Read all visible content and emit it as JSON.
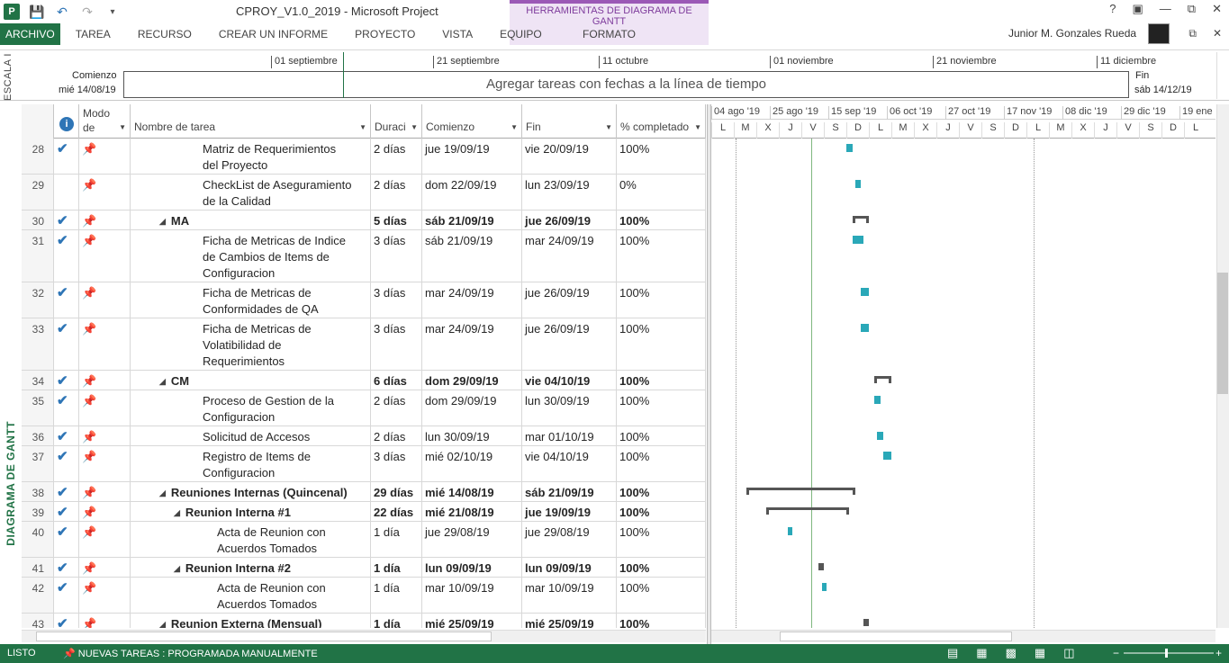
{
  "window": {
    "title": "CPROY_V1.0_2019 - Microsoft Project",
    "tools_group": "HERRAMIENTAS DE DIAGRAMA DE GANTT",
    "help": "?",
    "user": "Junior M. Gonzales Rueda"
  },
  "ribbon": {
    "tabs": [
      "ARCHIVO",
      "TAREA",
      "RECURSO",
      "CREAR UN INFORME",
      "PROYECTO",
      "VISTA",
      "EQUIPO"
    ],
    "context_tab": "FORMATO"
  },
  "timeline": {
    "side_label": "ESCALA I",
    "start_label": "Comienzo",
    "start_date": "mié 14/08/19",
    "end_label": "Fin",
    "end_date": "sáb 14/12/19",
    "placeholder": "Agregar tareas con fechas a la línea de tiempo",
    "ticks": [
      "01 septiembre",
      "21 septiembre",
      "11 octubre",
      "01 noviembre",
      "21 noviembre",
      "11 diciembre"
    ]
  },
  "view_label": "DIAGRAMA DE GANTT",
  "table": {
    "headers": {
      "mode": "Modo de",
      "name": "Nombre de tarea",
      "duration": "Duraci",
      "start": "Comienzo",
      "finish": "Fin",
      "pct": "% completado"
    },
    "rows": [
      {
        "id": "28",
        "check": true,
        "name_lines": [
          "Matriz de Requerimientos",
          "del Proyecto"
        ],
        "level": 2,
        "summary": false,
        "dur": "2 días",
        "start": "jue 19/09/19",
        "end": "vie 20/09/19",
        "pct": "100%"
      },
      {
        "id": "29",
        "check": false,
        "name_lines": [
          "CheckList de Aseguramiento",
          "de la Calidad"
        ],
        "level": 2,
        "summary": false,
        "dur": "2 días",
        "start": "dom 22/09/19",
        "end": "lun 23/09/19",
        "pct": "0%"
      },
      {
        "id": "30",
        "check": true,
        "name_lines": [
          "MA"
        ],
        "level": 1,
        "summary": true,
        "dur": "5 días",
        "start": "sáb 21/09/19",
        "end": "jue 26/09/19",
        "pct": "100%"
      },
      {
        "id": "31",
        "check": true,
        "name_lines": [
          "Ficha de Metricas de Indice",
          "de Cambios de Items de",
          "Configuracion"
        ],
        "level": 2,
        "summary": false,
        "dur": "3 días",
        "start": "sáb 21/09/19",
        "end": "mar 24/09/19",
        "pct": "100%"
      },
      {
        "id": "32",
        "check": true,
        "name_lines": [
          "Ficha de Metricas de",
          "Conformidades de QA"
        ],
        "level": 2,
        "summary": false,
        "dur": "3 días",
        "start": "mar 24/09/19",
        "end": "jue 26/09/19",
        "pct": "100%"
      },
      {
        "id": "33",
        "check": true,
        "name_lines": [
          "Ficha de Metricas de",
          "Volatibilidad de",
          "Requerimientos"
        ],
        "level": 2,
        "summary": false,
        "dur": "3 días",
        "start": "mar 24/09/19",
        "end": "jue 26/09/19",
        "pct": "100%"
      },
      {
        "id": "34",
        "check": true,
        "name_lines": [
          "CM"
        ],
        "level": 1,
        "summary": true,
        "dur": "6 días",
        "start": "dom 29/09/19",
        "end": "vie 04/10/19",
        "pct": "100%"
      },
      {
        "id": "35",
        "check": true,
        "name_lines": [
          "Proceso de Gestion de la",
          "Configuracion"
        ],
        "level": 2,
        "summary": false,
        "dur": "2 días",
        "start": "dom 29/09/19",
        "end": "lun 30/09/19",
        "pct": "100%"
      },
      {
        "id": "36",
        "check": true,
        "name_lines": [
          "Solicitud de Accesos"
        ],
        "level": 2,
        "summary": false,
        "dur": "2 días",
        "start": "lun 30/09/19",
        "end": "mar 01/10/19",
        "pct": "100%"
      },
      {
        "id": "37",
        "check": true,
        "name_lines": [
          "Registro de Items de",
          "Configuracion"
        ],
        "level": 2,
        "summary": false,
        "dur": "3 días",
        "start": "mié 02/10/19",
        "end": "vie 04/10/19",
        "pct": "100%"
      },
      {
        "id": "38",
        "check": true,
        "name_lines": [
          "Reuniones Internas (Quincenal)"
        ],
        "level": 1,
        "summary": true,
        "dur": "29 días",
        "start": "mié 14/08/19",
        "end": "sáb 21/09/19",
        "pct": "100%"
      },
      {
        "id": "39",
        "check": true,
        "name_lines": [
          "Reunion Interna #1"
        ],
        "level": 2,
        "summary": true,
        "dur": "22 días",
        "start": "mié 21/08/19",
        "end": "jue 19/09/19",
        "pct": "100%"
      },
      {
        "id": "40",
        "check": true,
        "name_lines": [
          "Acta de Reunion con",
          "Acuerdos Tomados"
        ],
        "level": 3,
        "summary": false,
        "dur": "1 día",
        "start": "jue 29/08/19",
        "end": "jue 29/08/19",
        "pct": "100%"
      },
      {
        "id": "41",
        "check": true,
        "name_lines": [
          "Reunion Interna #2"
        ],
        "level": 2,
        "summary": true,
        "dur": "1 día",
        "start": "lun 09/09/19",
        "end": "lun 09/09/19",
        "pct": "100%"
      },
      {
        "id": "42",
        "check": true,
        "name_lines": [
          "Acta de Reunion con",
          "Acuerdos Tomados"
        ],
        "level": 3,
        "summary": false,
        "dur": "1 día",
        "start": "mar 10/09/19",
        "end": "mar 10/09/19",
        "pct": "100%"
      },
      {
        "id": "43",
        "check": true,
        "name_lines": [
          "Reunion Externa (Mensual)"
        ],
        "level": 1,
        "summary": true,
        "dur": "1 día",
        "start": "mié 25/09/19",
        "end": "mié 25/09/19",
        "pct": "100%"
      }
    ]
  },
  "gantt": {
    "weeks": [
      "04 ago '19",
      "25 ago '19",
      "15 sep '19",
      "06 oct '19",
      "27 oct '19",
      "17 nov '19",
      "08 dic '19",
      "29 dic '19",
      "19 ene"
    ],
    "days": [
      "L",
      "M",
      "X",
      "J",
      "V",
      "S",
      "D",
      "L",
      "M",
      "X",
      "J",
      "V",
      "S",
      "D",
      "L",
      "M",
      "X",
      "J",
      "V",
      "S",
      "D",
      "L"
    ]
  },
  "status": {
    "ready": "LISTO",
    "new_tasks": "NUEVAS TAREAS : PROGRAMADA MANUALMENTE"
  },
  "colors": {
    "brand": "#217346",
    "bar": "#2aa8b8",
    "summary": "#555555",
    "tools_accent": "#9b59b6"
  }
}
